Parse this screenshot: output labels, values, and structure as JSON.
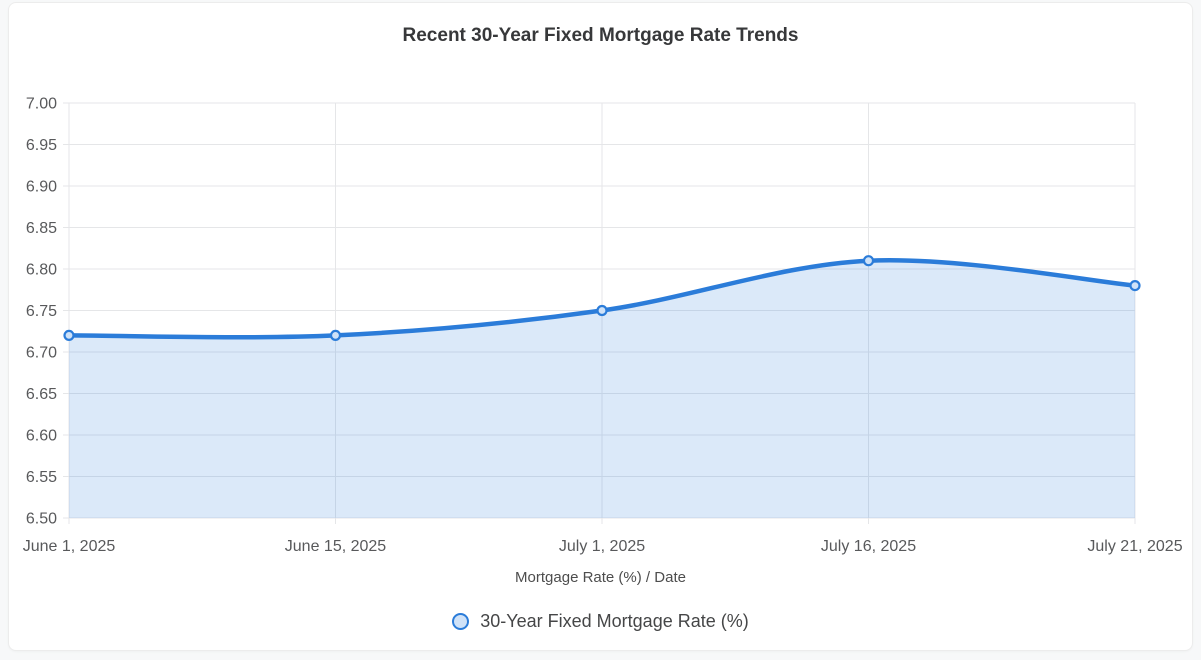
{
  "chart_data": {
    "type": "area",
    "title": "Recent 30-Year Fixed Mortgage Rate Trends",
    "categories": [
      "June 1, 2025",
      "June 15, 2025",
      "July 1, 2025",
      "July 16, 2025",
      "July 21, 2025"
    ],
    "series": [
      {
        "name": "30-Year Fixed Mortgage Rate (%)",
        "values": [
          6.72,
          6.72,
          6.75,
          6.81,
          6.78
        ]
      }
    ],
    "xlabel": "Mortgage Rate (%) / Date",
    "ylabel": "",
    "ylim": [
      6.5,
      7.0
    ],
    "y_tick_step": 0.05,
    "y_tick_labels": [
      "7.00",
      "6.95",
      "6.90",
      "6.85",
      "6.80",
      "6.75",
      "6.70",
      "6.65",
      "6.60",
      "6.55",
      "6.50"
    ],
    "grid": true,
    "legend_position": "bottom",
    "line_color": "#2b7cd9",
    "point_fill": "#cfe2f8",
    "area_color": "#2b7cd9",
    "area_opacity": 0.17,
    "grid_color": "#e5e6e8",
    "tick_text_color": "#58595b"
  }
}
